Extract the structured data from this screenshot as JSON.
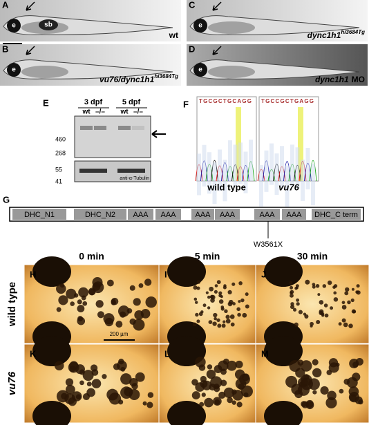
{
  "figure": {
    "fish_panels": [
      {
        "label": "A",
        "eye": "e",
        "bladder": "sb",
        "genotype": "wt"
      },
      {
        "label": "B",
        "eye": "e",
        "genotype": "vu76/dync1h1",
        "superscript": "hi3684Tg"
      },
      {
        "label": "C",
        "eye": "e",
        "genotype": "dync1h1",
        "superscript": "hi3684Tg"
      },
      {
        "label": "D",
        "eye": "e",
        "genotype": "dync1h1",
        "suffix": "MO"
      }
    ],
    "blot": {
      "label": "E",
      "timepoints": [
        "3 dpf",
        "5 dpf"
      ],
      "lanes": [
        "wt",
        "–/–",
        "wt",
        "–/–"
      ],
      "markers": [
        460,
        268,
        55,
        41
      ],
      "loading_control": "anti-α-Tubulin"
    },
    "sequencing": {
      "label": "F",
      "traces": [
        {
          "name": "wild type",
          "bases": "TGCGCTGCAGG"
        },
        {
          "name": "vu76",
          "bases": "TGCCGCTGAGG"
        }
      ]
    },
    "domain_map": {
      "label": "G",
      "domains": [
        "DHC_N1",
        "DHC_N2",
        "AAA",
        "AAA",
        "AAA",
        "AAA",
        "AAA",
        "AAA",
        "DHC_C term"
      ],
      "mutation": "W3561X"
    },
    "melanosome_panels": {
      "timepoints": [
        "0 min",
        "5 min",
        "30 min"
      ],
      "rows": [
        {
          "name": "wild type",
          "panels": [
            "H",
            "I",
            "J"
          ]
        },
        {
          "name": "vu76",
          "panels": [
            "K",
            "L",
            "M"
          ]
        }
      ],
      "scale_bar": "200 µm"
    }
  }
}
